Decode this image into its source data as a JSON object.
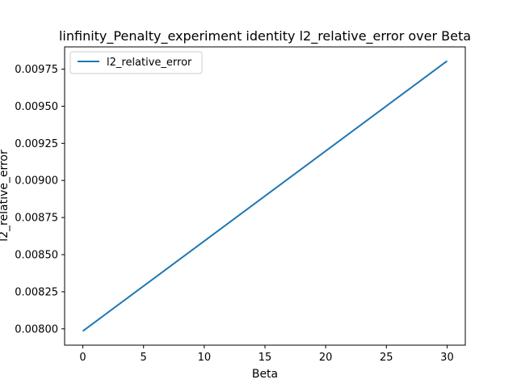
{
  "chart_data": {
    "type": "line",
    "title": "linfinity_Penalty_experiment identity l2_relative_error over Beta",
    "xlabel": "Beta",
    "ylabel": "l2_relative_error",
    "xlim": [
      -1.5,
      31.5
    ],
    "ylim": [
      0.00789,
      0.0099
    ],
    "x_ticks": [
      0,
      5,
      10,
      15,
      20,
      25,
      30
    ],
    "x_tick_labels": [
      "0",
      "5",
      "10",
      "15",
      "20",
      "25",
      "30"
    ],
    "y_ticks": [
      0.008,
      0.00825,
      0.0085,
      0.00875,
      0.009,
      0.00925,
      0.0095,
      0.00975
    ],
    "y_tick_labels": [
      "0.00800",
      "0.00825",
      "0.00850",
      "0.00875",
      "0.00900",
      "0.00925",
      "0.00950",
      "0.00975"
    ],
    "grid": false,
    "legend_position": "top-left",
    "series": [
      {
        "name": "l2_relative_error",
        "color": "#1f77b4",
        "x": [
          0,
          30
        ],
        "y": [
          0.007985,
          0.009805
        ]
      }
    ]
  }
}
